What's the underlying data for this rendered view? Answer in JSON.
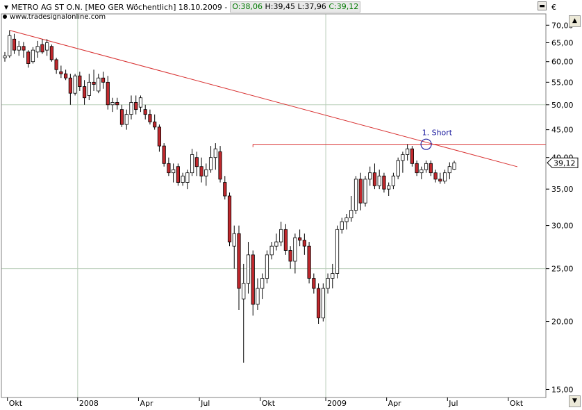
{
  "header": {
    "title": "METRO AG ST O.N. [MEO GER  Wöchentlich] 18.10.2009 -",
    "open": "O:38,06",
    "high": "H:39,45",
    "low": "L:37,96",
    "close": "C:39,12",
    "source": "www.tradesignalonline.com",
    "currency": "€"
  },
  "colors": {
    "up_body": "#ffffff",
    "down_body": "#c0282d",
    "trendline": "#d83030",
    "grid": "#b7cdb7",
    "signal": "#2020a0",
    "open_text": "#006400",
    "close_text": "#006400"
  },
  "chart_data": {
    "type": "candlestick",
    "scale": "log",
    "ylim": [
      14.5,
      73
    ],
    "y_ticks": [
      15,
      20,
      25,
      30,
      35,
      40,
      45,
      50,
      55,
      60,
      65,
      70
    ],
    "y_tick_labels": [
      "15,00",
      "20,00",
      "25,00",
      "30,00",
      "35,00",
      "40,00",
      "45,00",
      "50,00",
      "55,00",
      "60,00",
      "65,00",
      "70,00"
    ],
    "x_tick_labels": [
      "Okt",
      "2008",
      "Apr",
      "Jul",
      "Okt",
      "2009",
      "Apr",
      "Jul",
      "Okt"
    ],
    "last_price_label": "39,12",
    "last_price": 39.12,
    "horizontal_line": 42.3,
    "trendline": [
      {
        "week": 1,
        "price": 68.5
      },
      {
        "week": 108,
        "price": 38.7
      }
    ],
    "signal_label": "1. Short",
    "signal_week": 90,
    "signal_price": 42.3,
    "candles": [
      [
        61,
        62.5,
        60,
        61.5
      ],
      [
        61.5,
        68.5,
        61,
        67
      ],
      [
        66,
        67.5,
        62,
        63
      ],
      [
        63,
        65.5,
        61.5,
        64
      ],
      [
        64,
        65.2,
        61,
        63
      ],
      [
        62.5,
        63,
        58.5,
        59.5
      ],
      [
        60,
        63.8,
        59.5,
        63
      ],
      [
        62.5,
        65.5,
        61,
        64
      ],
      [
        64.5,
        66,
        62,
        62.5
      ],
      [
        63,
        66,
        61.5,
        65
      ],
      [
        64,
        64.5,
        60,
        60.5
      ],
      [
        60.5,
        61,
        57,
        58
      ],
      [
        57.5,
        59,
        56,
        57
      ],
      [
        57,
        58,
        55.5,
        56
      ],
      [
        56,
        57,
        50,
        52.5
      ],
      [
        52.5,
        57,
        52,
        56.5
      ],
      [
        56.5,
        57.5,
        53,
        54
      ],
      [
        54,
        55.5,
        50,
        51.5
      ],
      [
        52,
        57,
        51,
        55
      ],
      [
        55,
        58,
        53,
        54.5
      ],
      [
        53,
        57,
        52.5,
        56
      ],
      [
        56,
        57.5,
        53.5,
        55
      ],
      [
        55,
        56.5,
        49,
        50
      ],
      [
        50,
        51.5,
        48.5,
        50.5
      ],
      [
        50.5,
        51.5,
        49,
        50
      ],
      [
        49,
        50,
        45.5,
        46
      ],
      [
        46,
        49,
        45,
        48
      ],
      [
        48,
        52,
        47,
        50.5
      ],
      [
        50.5,
        52,
        48,
        49
      ],
      [
        49.5,
        52,
        48.5,
        51.5
      ],
      [
        49,
        50,
        47,
        48
      ],
      [
        48,
        49,
        46,
        46.5
      ],
      [
        46.5,
        48,
        45,
        45.5
      ],
      [
        45.5,
        46,
        41,
        42
      ],
      [
        42,
        42.5,
        38.5,
        39
      ],
      [
        39,
        40,
        37,
        37.5
      ],
      [
        37.5,
        39,
        36,
        38
      ],
      [
        38.5,
        39,
        35.5,
        36
      ],
      [
        36,
        37.5,
        35.5,
        37
      ],
      [
        36,
        38,
        35,
        37.5
      ],
      [
        37.5,
        41.5,
        37,
        40.5
      ],
      [
        40,
        41,
        37,
        38.5
      ],
      [
        38.5,
        40,
        36,
        37
      ],
      [
        37,
        39,
        35.5,
        38
      ],
      [
        38,
        42,
        37.5,
        40
      ],
      [
        40,
        42.5,
        38,
        41.5
      ],
      [
        41,
        42,
        36,
        36.5
      ],
      [
        36,
        37,
        33.5,
        34
      ],
      [
        34,
        34.5,
        27.5,
        28
      ],
      [
        27.5,
        30,
        25,
        29
      ],
      [
        29,
        30,
        21,
        23
      ],
      [
        22,
        25.5,
        16.8,
        23.5
      ],
      [
        23.5,
        28,
        22.5,
        26.5
      ],
      [
        26.5,
        27,
        20.5,
        21.5
      ],
      [
        21.5,
        24,
        21,
        23
      ],
      [
        23,
        24.5,
        22,
        24
      ],
      [
        24,
        27,
        23.5,
        26.5
      ],
      [
        26.5,
        28,
        26,
        27.5
      ],
      [
        27.5,
        29,
        27,
        28
      ],
      [
        28,
        30.5,
        27.5,
        29.5
      ],
      [
        29.5,
        30.2,
        26.5,
        27
      ],
      [
        27,
        27.5,
        25,
        25.8
      ],
      [
        25.8,
        29,
        24.5,
        28.5
      ],
      [
        28.5,
        29.5,
        27.5,
        28.2
      ],
      [
        28.2,
        29,
        26.5,
        27.5
      ],
      [
        27.5,
        28,
        23.5,
        24
      ],
      [
        24,
        24.5,
        22.5,
        23
      ],
      [
        23,
        23.5,
        19.8,
        20.3
      ],
      [
        20.3,
        23.5,
        20,
        23
      ],
      [
        23,
        24.5,
        22.5,
        24
      ],
      [
        24,
        25.5,
        23,
        24.5
      ],
      [
        24.5,
        30,
        24,
        29.5
      ],
      [
        29.5,
        31,
        29,
        30.5
      ],
      [
        30.5,
        31.5,
        29.5,
        31
      ],
      [
        31,
        34,
        30.5,
        32
      ],
      [
        32,
        37,
        31.5,
        36.5
      ],
      [
        36.5,
        37.5,
        32,
        33
      ],
      [
        33,
        37,
        32.5,
        36.5
      ],
      [
        36.5,
        38.5,
        35.5,
        37.5
      ],
      [
        37.5,
        39,
        35,
        35.5
      ],
      [
        35.5,
        38,
        35,
        37
      ],
      [
        37,
        37.5,
        34.5,
        35
      ],
      [
        35,
        36,
        34,
        35.5
      ],
      [
        35.5,
        37.5,
        35,
        37
      ],
      [
        37,
        40,
        36.5,
        39.5
      ],
      [
        39.5,
        41,
        37.5,
        40.5
      ],
      [
        40.5,
        42.3,
        39.5,
        41.5
      ],
      [
        41.5,
        42,
        38.5,
        39
      ],
      [
        39,
        39.5,
        37,
        37.5
      ],
      [
        37.5,
        38.5,
        36.5,
        38
      ],
      [
        38,
        39.5,
        37.5,
        39
      ],
      [
        39,
        39.5,
        37,
        37.5
      ],
      [
        37.5,
        38,
        36,
        36.5
      ],
      [
        36.5,
        37.5,
        35.8,
        36.2
      ],
      [
        36.2,
        38,
        35.8,
        37.5
      ],
      [
        37.5,
        39.2,
        36.5,
        38.5
      ],
      [
        38.06,
        39.45,
        37.96,
        39.12
      ]
    ]
  }
}
